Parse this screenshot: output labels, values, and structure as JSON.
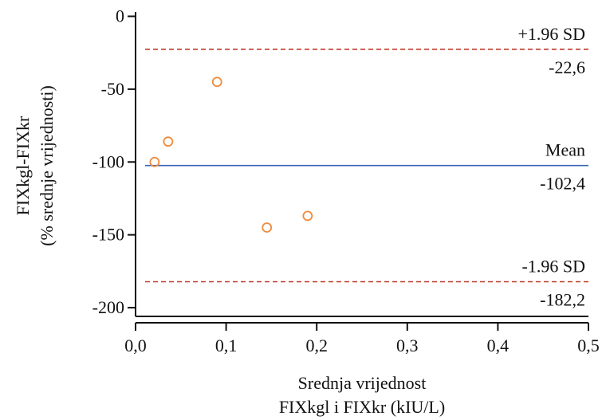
{
  "chart_data": {
    "type": "scatter",
    "title": "",
    "xlabel_lines": [
      "Srednja vrijednost",
      "FIXkgl i FIXkr (kIU/L)"
    ],
    "ylabel_lines": [
      "FIXkgl-FIXkr",
      "(% srednje vrijednosti)"
    ],
    "xlim": [
      0,
      0.5
    ],
    "ylim": [
      -206,
      3
    ],
    "x_ticks": [
      {
        "value": 0,
        "label": "0,0"
      },
      {
        "value": 0.1,
        "label": "0,1"
      },
      {
        "value": 0.2,
        "label": "0,2"
      },
      {
        "value": 0.3,
        "label": "0,3"
      },
      {
        "value": 0.4,
        "label": "0,4"
      },
      {
        "value": 0.5,
        "label": "0,5"
      }
    ],
    "y_ticks": [
      {
        "value": 0,
        "label": "0"
      },
      {
        "value": -50,
        "label": "-50"
      },
      {
        "value": -100,
        "label": "-100"
      },
      {
        "value": -150,
        "label": "-150"
      },
      {
        "value": -200,
        "label": "-200"
      }
    ],
    "points": [
      {
        "x": 0.021,
        "y": -100
      },
      {
        "x": 0.036,
        "y": -86
      },
      {
        "x": 0.09,
        "y": -45
      },
      {
        "x": 0.145,
        "y": -145
      },
      {
        "x": 0.19,
        "y": -137
      }
    ],
    "reference_lines": [
      {
        "name": "+1.96 SD",
        "value": -22.6,
        "value_label": "-22,6",
        "style": "dashed",
        "color": "#c0392b"
      },
      {
        "name": "Mean",
        "value": -102.4,
        "value_label": "-102,4",
        "style": "solid",
        "color": "#3a63b8"
      },
      {
        "name": "-1.96 SD",
        "value": -182.2,
        "value_label": "-182,2",
        "style": "dashed",
        "color": "#c0392b"
      }
    ],
    "marker_color": "#f08a3c"
  }
}
